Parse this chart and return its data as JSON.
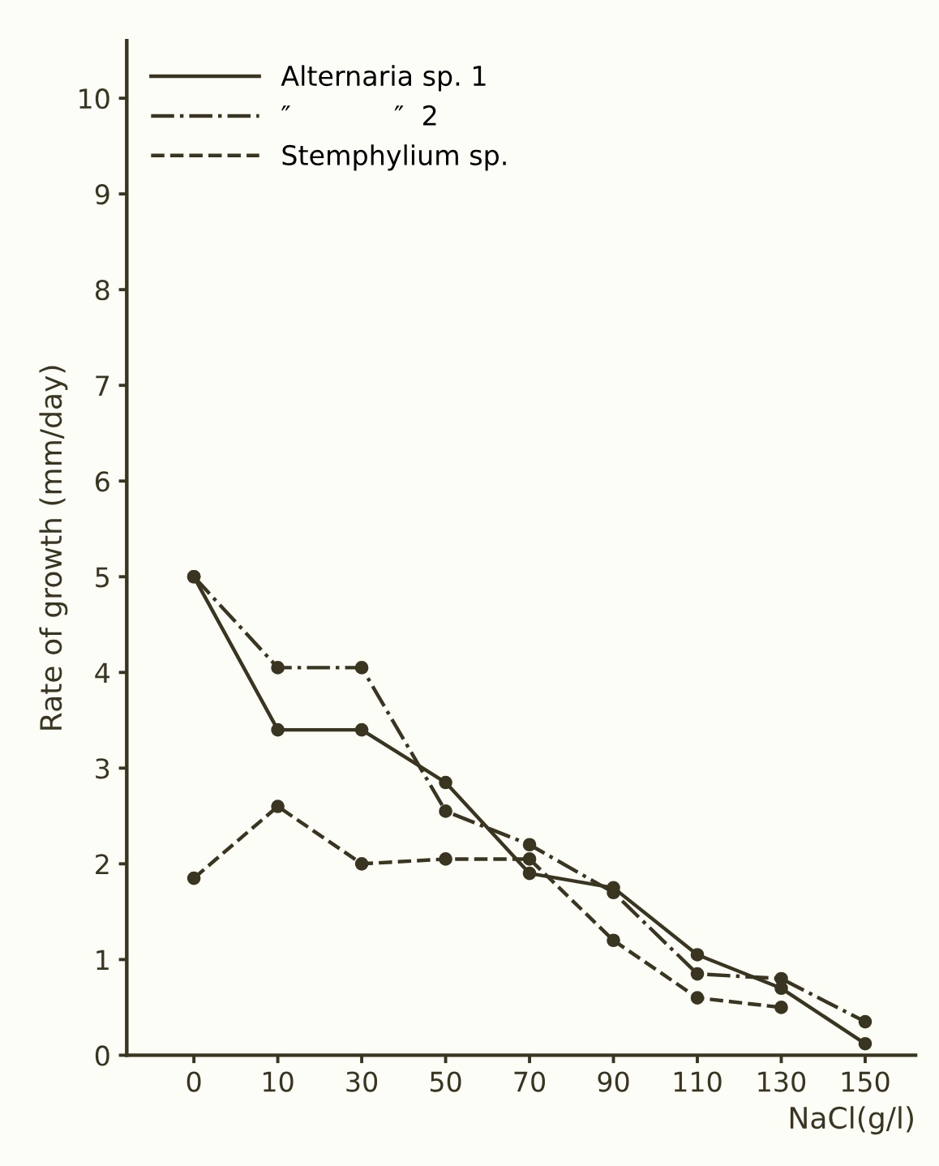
{
  "chart_data": {
    "type": "line",
    "xlabel": "NaCl(g/l)",
    "ylabel": "Rate of growth (mm/day)",
    "categories": [
      "0",
      "10",
      "30",
      "50",
      "70",
      "90",
      "110",
      "130",
      "150"
    ],
    "series": [
      {
        "name": "Alternaria sp. 1",
        "color": "#3a3520",
        "line_style": "solid",
        "values": [
          5.0,
          3.4,
          3.4,
          2.85,
          1.9,
          1.75,
          1.05,
          0.7,
          0.12
        ]
      },
      {
        "name": "″            ″  2",
        "color": "#3a3520",
        "line_style": "dashdot",
        "values": [
          5.0,
          4.05,
          4.05,
          2.55,
          2.2,
          1.7,
          0.85,
          0.8,
          0.35
        ]
      },
      {
        "name": "Stemphylium sp.",
        "color": "#3a3520",
        "line_style": "dashed",
        "values": [
          1.85,
          2.6,
          2.0,
          2.05,
          2.05,
          1.2,
          0.6,
          0.5,
          null
        ]
      }
    ],
    "ylim": [
      0,
      10.6
    ],
    "yticks": [
      0,
      1,
      2,
      3,
      4,
      5,
      6,
      7,
      8,
      9,
      10
    ],
    "marker": "circle",
    "grid": false,
    "legend": "top left"
  }
}
